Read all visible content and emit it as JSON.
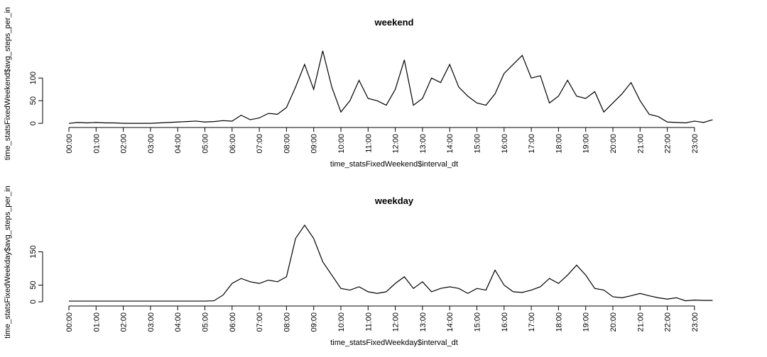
{
  "chart_data": [
    {
      "type": "line",
      "title": "weekend",
      "xlabel": "time_statsFixedWeekend$interval_dt",
      "ylabel": "time_statsFixedWeekend$avg_steps_per_in",
      "color": "#000000",
      "x": [
        0,
        20,
        40,
        60,
        80,
        100,
        120,
        140,
        160,
        180,
        200,
        220,
        240,
        260,
        280,
        300,
        320,
        340,
        360,
        380,
        400,
        420,
        440,
        460,
        480,
        500,
        520,
        540,
        560,
        580,
        600,
        620,
        640,
        660,
        680,
        700,
        720,
        740,
        760,
        780,
        800,
        820,
        840,
        860,
        880,
        900,
        920,
        940,
        960,
        980,
        1000,
        1020,
        1040,
        1060,
        1080,
        1100,
        1120,
        1140,
        1160,
        1180,
        1200,
        1220,
        1240,
        1260,
        1280,
        1300,
        1320,
        1340,
        1360,
        1380,
        1400,
        1420
      ],
      "series": [
        {
          "name": "weekend",
          "values": [
            0,
            2,
            1,
            2,
            1,
            1,
            0,
            0,
            0,
            0,
            1,
            2,
            3,
            4,
            5,
            3,
            4,
            6,
            5,
            18,
            8,
            12,
            22,
            20,
            35,
            80,
            130,
            75,
            160,
            80,
            25,
            50,
            95,
            55,
            50,
            40,
            75,
            140,
            40,
            55,
            100,
            90,
            130,
            80,
            60,
            45,
            40,
            65,
            110,
            130,
            150,
            100,
            105,
            45,
            60,
            95,
            60,
            55,
            70,
            25,
            45,
            65,
            90,
            50,
            20,
            15,
            3,
            2,
            1,
            5,
            2,
            8
          ]
        }
      ],
      "xlim": [
        0,
        1435
      ],
      "ylim": [
        -6,
        181.5
      ],
      "xticks": [
        {
          "value": 0,
          "label": "00:00"
        },
        {
          "value": 60,
          "label": "01:00"
        },
        {
          "value": 120,
          "label": "02:00"
        },
        {
          "value": 180,
          "label": "03:00"
        },
        {
          "value": 240,
          "label": "04:00"
        },
        {
          "value": 300,
          "label": "05:00"
        },
        {
          "value": 360,
          "label": "06:00"
        },
        {
          "value": 420,
          "label": "07:00"
        },
        {
          "value": 480,
          "label": "08:00"
        },
        {
          "value": 540,
          "label": "09:00"
        },
        {
          "value": 600,
          "label": "10:00"
        },
        {
          "value": 660,
          "label": "11:00"
        },
        {
          "value": 720,
          "label": "12:00"
        },
        {
          "value": 780,
          "label": "13:00"
        },
        {
          "value": 840,
          "label": "14:00"
        },
        {
          "value": 900,
          "label": "15:00"
        },
        {
          "value": 960,
          "label": "16:00"
        },
        {
          "value": 1020,
          "label": "17:00"
        },
        {
          "value": 1080,
          "label": "18:00"
        },
        {
          "value": 1140,
          "label": "19:00"
        },
        {
          "value": 1200,
          "label": "20:00"
        },
        {
          "value": 1260,
          "label": "21:00"
        },
        {
          "value": 1320,
          "label": "22:00"
        },
        {
          "value": 1380,
          "label": "23:00"
        }
      ],
      "yticks": [
        0,
        50,
        100
      ]
    },
    {
      "type": "line",
      "title": "weekday",
      "xlabel": "time_statsFixedWeekday$interval_dt",
      "ylabel": "time_statsFixedWeekday$avg_steps_per_in",
      "color": "#000000",
      "x": [
        0,
        20,
        40,
        60,
        80,
        100,
        120,
        140,
        160,
        180,
        200,
        220,
        240,
        260,
        280,
        300,
        320,
        340,
        360,
        380,
        400,
        420,
        440,
        460,
        480,
        500,
        520,
        540,
        560,
        580,
        600,
        620,
        640,
        660,
        680,
        700,
        720,
        740,
        760,
        780,
        800,
        820,
        840,
        860,
        880,
        900,
        920,
        940,
        960,
        980,
        1000,
        1020,
        1040,
        1060,
        1080,
        1100,
        1120,
        1140,
        1160,
        1180,
        1200,
        1220,
        1240,
        1260,
        1280,
        1300,
        1320,
        1340,
        1360,
        1380,
        1400,
        1420
      ],
      "series": [
        {
          "name": "weekday",
          "values": [
            2,
            2,
            2,
            2,
            2,
            2,
            2,
            2,
            2,
            2,
            2,
            2,
            2,
            2,
            2,
            2,
            3,
            20,
            55,
            70,
            60,
            55,
            65,
            60,
            75,
            190,
            230,
            190,
            120,
            80,
            40,
            35,
            45,
            30,
            25,
            30,
            55,
            75,
            40,
            60,
            30,
            40,
            45,
            40,
            25,
            40,
            35,
            95,
            50,
            30,
            28,
            35,
            45,
            70,
            55,
            80,
            110,
            80,
            40,
            35,
            15,
            12,
            18,
            25,
            18,
            12,
            8,
            12,
            3,
            5,
            4,
            4
          ]
        }
      ],
      "xlim": [
        0,
        1435
      ],
      "ylim": [
        -8.5,
        246.8
      ],
      "xticks": [
        {
          "value": 0,
          "label": "00:00"
        },
        {
          "value": 60,
          "label": "01:00"
        },
        {
          "value": 120,
          "label": "02:00"
        },
        {
          "value": 180,
          "label": "03:00"
        },
        {
          "value": 240,
          "label": "04:00"
        },
        {
          "value": 300,
          "label": "05:00"
        },
        {
          "value": 360,
          "label": "06:00"
        },
        {
          "value": 420,
          "label": "07:00"
        },
        {
          "value": 480,
          "label": "08:00"
        },
        {
          "value": 540,
          "label": "09:00"
        },
        {
          "value": 600,
          "label": "10:00"
        },
        {
          "value": 660,
          "label": "11:00"
        },
        {
          "value": 720,
          "label": "12:00"
        },
        {
          "value": 780,
          "label": "13:00"
        },
        {
          "value": 840,
          "label": "14:00"
        },
        {
          "value": 900,
          "label": "15:00"
        },
        {
          "value": 960,
          "label": "16:00"
        },
        {
          "value": 1020,
          "label": "17:00"
        },
        {
          "value": 1080,
          "label": "18:00"
        },
        {
          "value": 1140,
          "label": "19:00"
        },
        {
          "value": 1200,
          "label": "20:00"
        },
        {
          "value": 1260,
          "label": "21:00"
        },
        {
          "value": 1320,
          "label": "22:00"
        },
        {
          "value": 1380,
          "label": "23:00"
        }
      ],
      "yticks": [
        0,
        50,
        150
      ]
    }
  ]
}
